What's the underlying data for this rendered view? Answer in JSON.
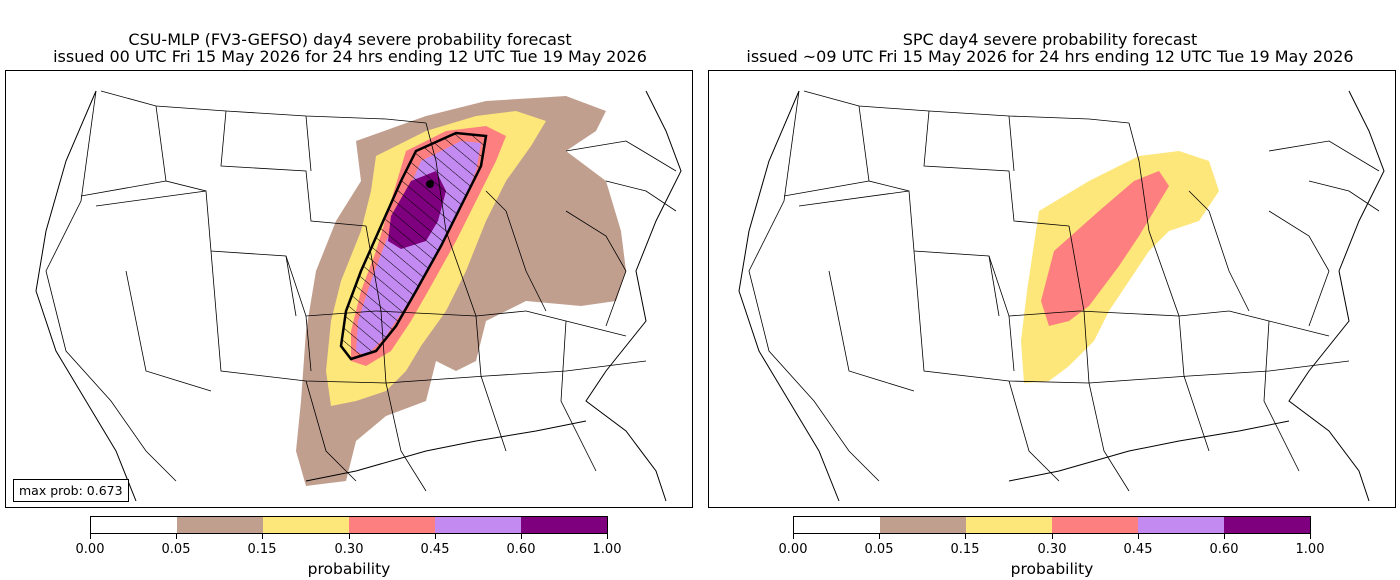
{
  "left_panel": {
    "title_line1": "CSU-MLP (FV3-GEFSO) day4 severe probability forecast",
    "title_line2": "issued 00 UTC Fri 15 May 2026 for 24 hrs ending 12 UTC Tue 19 May 2026",
    "max_prob_label": "max prob: 0.673"
  },
  "right_panel": {
    "title_line1": "SPC day4 severe probability forecast",
    "title_line2": "issued ~09 UTC Fri 15 May 2026 for 24 hrs ending 12 UTC Tue 19 May 2026"
  },
  "colorbar": {
    "label": "probability",
    "ticks": [
      "0.00",
      "0.05",
      "0.15",
      "0.30",
      "0.45",
      "0.60",
      "1.00"
    ],
    "colors": [
      "#ffffff",
      "#c19f8f",
      "#fde67a",
      "#fd7f7f",
      "#c38bf2",
      "#7f007f"
    ]
  }
}
